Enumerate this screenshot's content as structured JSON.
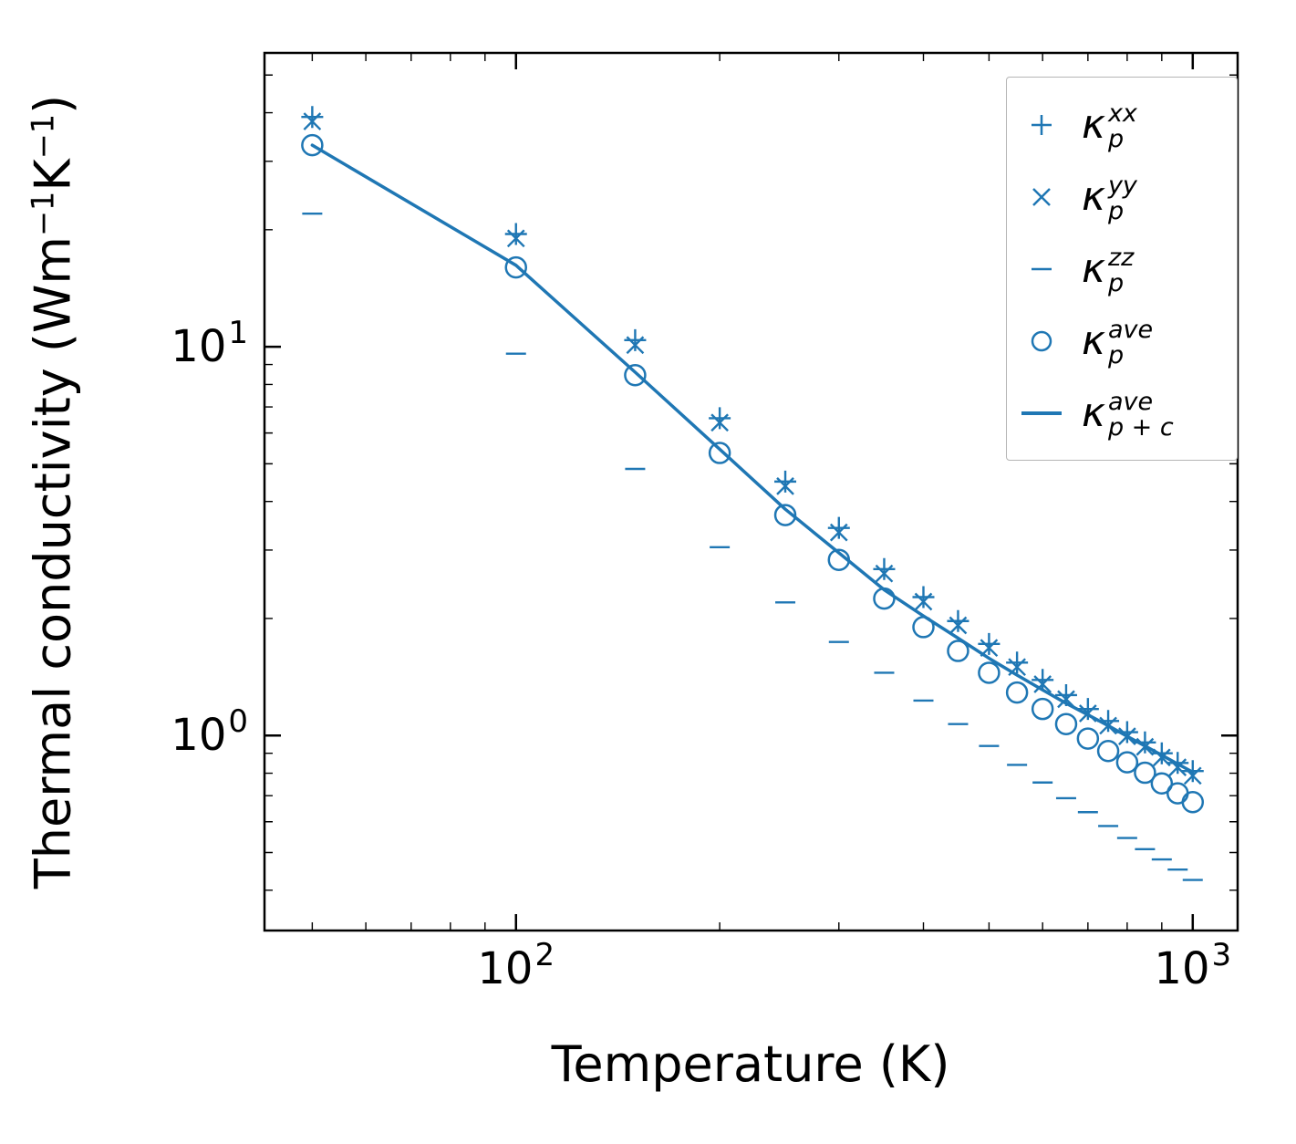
{
  "chart_data": {
    "type": "line",
    "title": "",
    "xlabel": "Temperature (K)",
    "ylabel": "Thermal conductivity (Wm⁻¹K⁻¹)",
    "ylabel_parts": [
      {
        "t": "Thermal conductivity (Wm"
      },
      {
        "t": "−1",
        "sup": true
      },
      {
        "t": "K"
      },
      {
        "t": "−1",
        "sup": true
      },
      {
        "t": ")"
      }
    ],
    "x_scale": "log",
    "y_scale": "log",
    "xlim": [
      42.5,
      1165
    ],
    "ylim": [
      0.315,
      57
    ],
    "grid": false,
    "color": "#1f77b4",
    "x_ticks": [
      {
        "value": 100,
        "base": "10",
        "exp": "2"
      },
      {
        "value": 1000,
        "base": "10",
        "exp": "3"
      }
    ],
    "y_ticks": [
      {
        "value": 1,
        "base": "10",
        "exp": "0"
      },
      {
        "value": 10,
        "base": "10",
        "exp": "1"
      }
    ],
    "x": [
      50,
      100,
      150,
      200,
      250,
      300,
      350,
      400,
      450,
      500,
      550,
      600,
      650,
      700,
      750,
      800,
      850,
      900,
      950,
      1000
    ],
    "series": [
      {
        "name": "kappa_p_xx",
        "marker": "plus",
        "values": [
          39.0,
          19.5,
          10.4,
          6.55,
          4.5,
          3.42,
          2.68,
          2.27,
          1.97,
          1.72,
          1.54,
          1.39,
          1.27,
          1.17,
          1.09,
          1.02,
          0.96,
          0.9,
          0.85,
          0.81
        ]
      },
      {
        "name": "kappa_p_yy",
        "marker": "x",
        "values": [
          38.0,
          19.0,
          10.1,
          6.38,
          4.38,
          3.33,
          2.61,
          2.21,
          1.92,
          1.68,
          1.5,
          1.355,
          1.24,
          1.14,
          1.06,
          0.995,
          0.935,
          0.878,
          0.828,
          0.788
        ]
      },
      {
        "name": "kappa_p_zz",
        "marker": "hline",
        "values": [
          22.0,
          9.6,
          4.85,
          3.05,
          2.2,
          1.74,
          1.45,
          1.23,
          1.07,
          0.94,
          0.84,
          0.757,
          0.69,
          0.635,
          0.585,
          0.545,
          0.51,
          0.48,
          0.452,
          0.425
        ]
      },
      {
        "name": "kappa_p_ave",
        "marker": "circle",
        "values": [
          33.0,
          16.0,
          8.45,
          5.33,
          3.69,
          2.83,
          2.25,
          1.9,
          1.65,
          1.45,
          1.29,
          1.17,
          1.07,
          0.982,
          0.912,
          0.853,
          0.802,
          0.753,
          0.71,
          0.674
        ]
      },
      {
        "name": "kappa_p_plus_c_ave",
        "marker": "line",
        "values": [
          33.0,
          16.2,
          8.6,
          5.45,
          3.82,
          2.95,
          2.37,
          2.03,
          1.78,
          1.58,
          1.43,
          1.31,
          1.21,
          1.13,
          1.06,
          0.995,
          0.94,
          0.89,
          0.845,
          0.805
        ]
      }
    ],
    "legend": {
      "position": "upper right",
      "entries": [
        {
          "marker": "plus",
          "kappa": "κ",
          "sup": "xx",
          "sub": "p"
        },
        {
          "marker": "x",
          "kappa": "κ",
          "sup": "yy",
          "sub": "p"
        },
        {
          "marker": "hline",
          "kappa": "κ",
          "sup": "zz",
          "sub": "p"
        },
        {
          "marker": "circle",
          "kappa": "κ",
          "sup": "ave",
          "sub": "p"
        },
        {
          "marker": "line",
          "kappa": "κ",
          "sup": "ave",
          "sub": "p + c"
        }
      ]
    }
  }
}
